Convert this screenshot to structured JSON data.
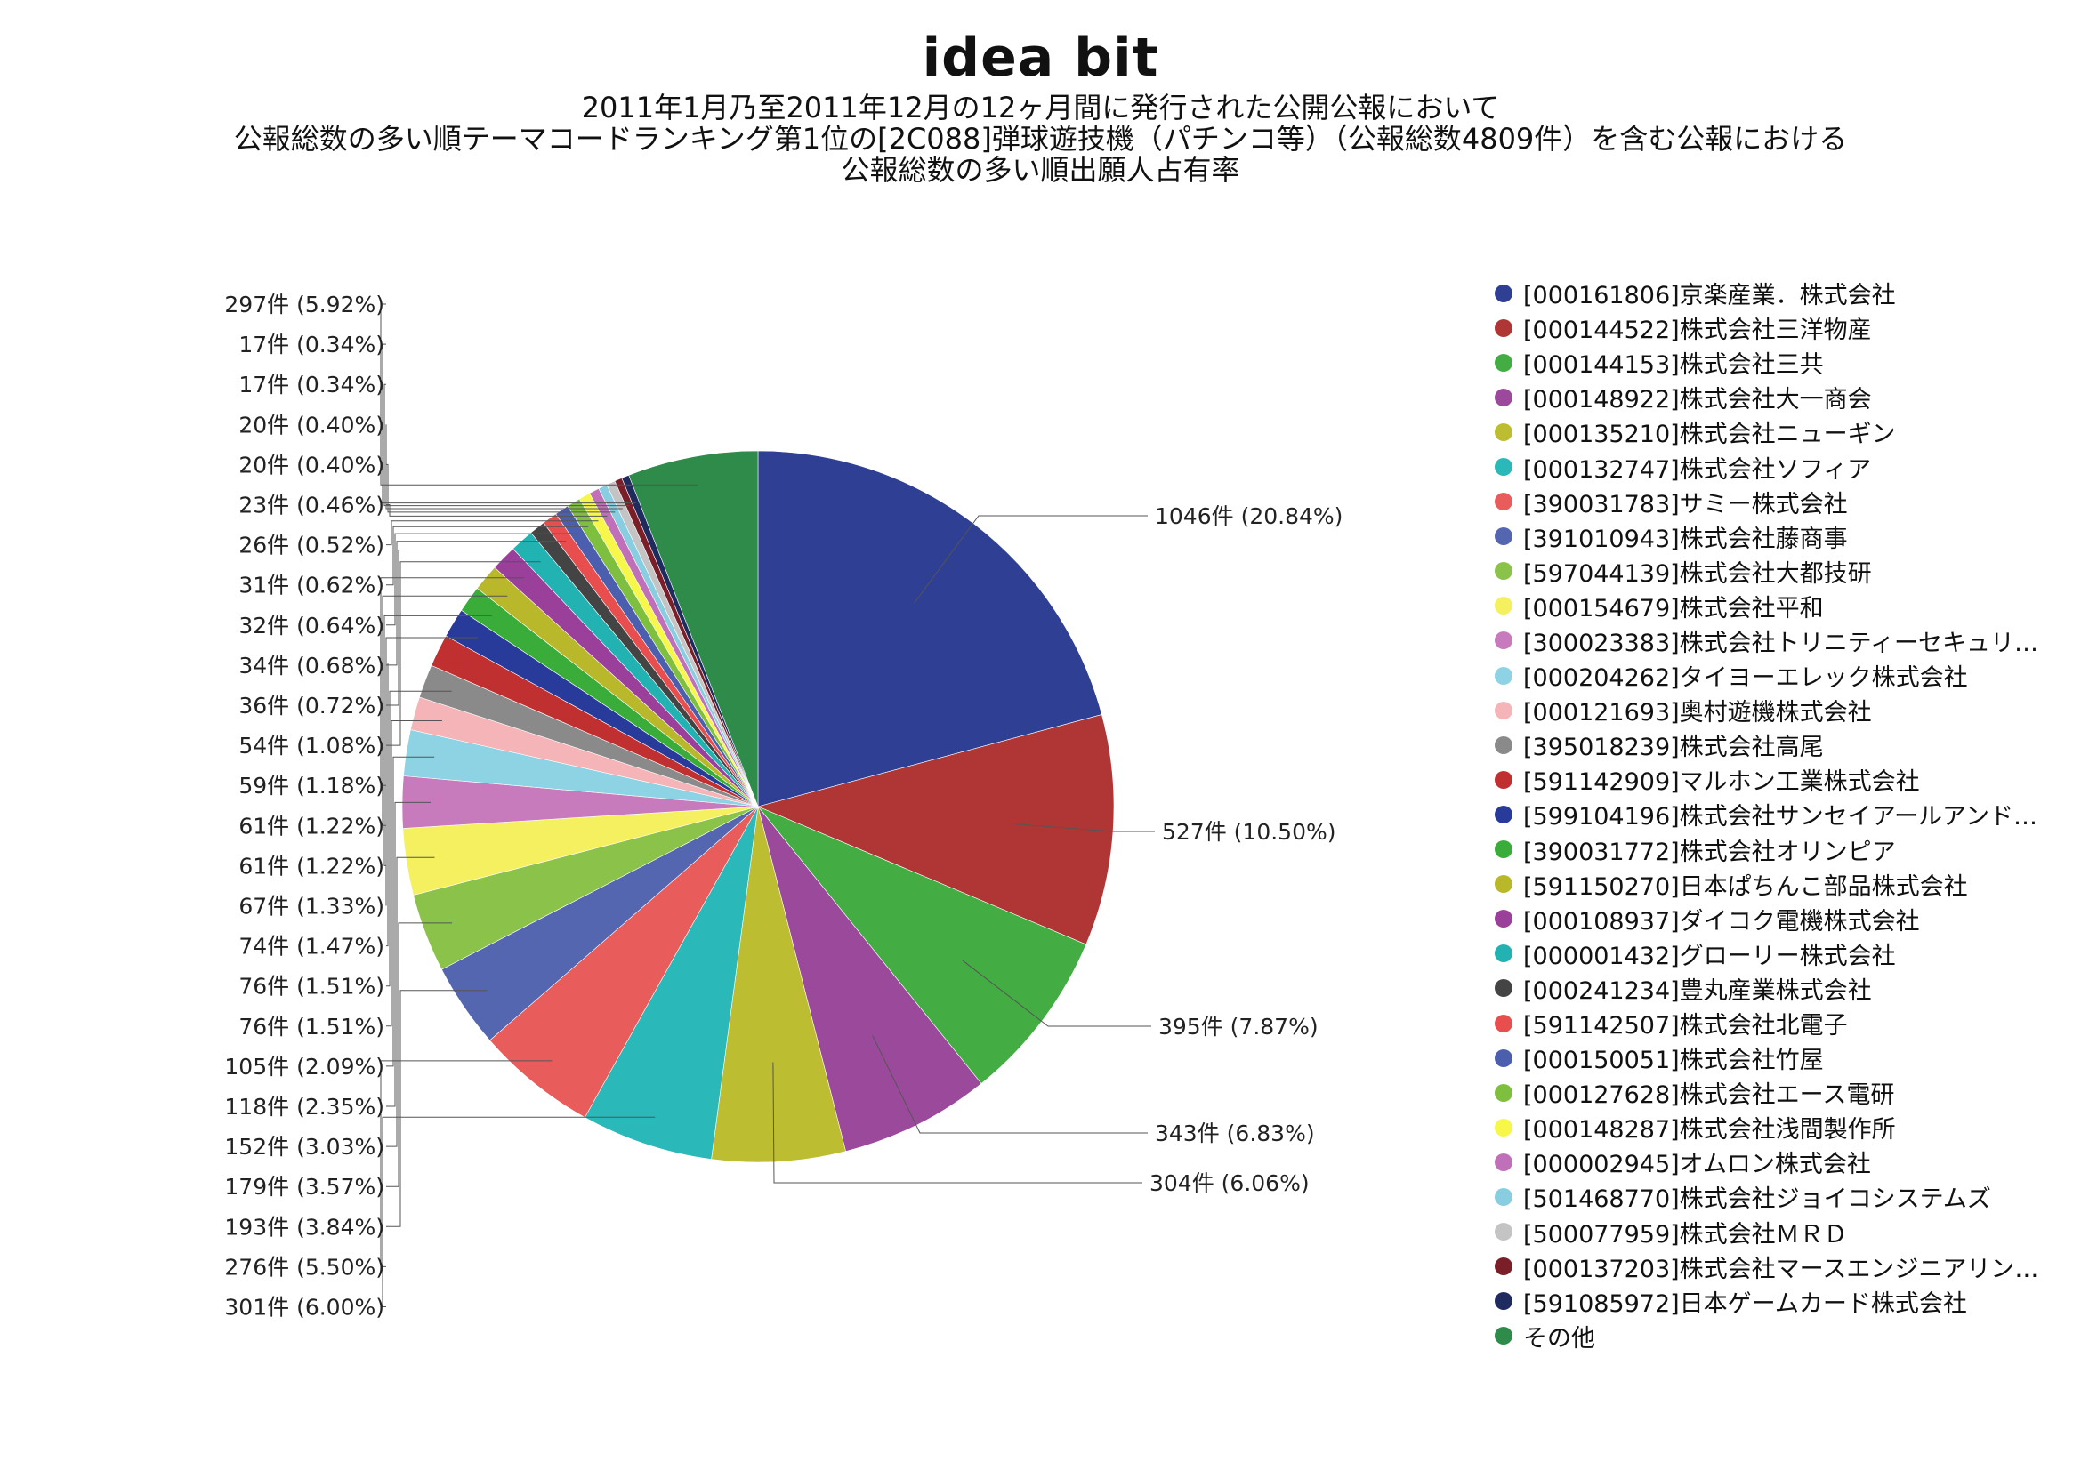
{
  "header": {
    "logo": "idea bit",
    "title_lines": [
      "2011年1月乃至2011年12月の12ヶ月間に発行された公開公報において",
      "公報総数の多い順テーマコードランキング第1位の[2C088]弾球遊技機（パチンコ等）（公報総数4809件）を含む公報における",
      "公報総数の多い順出願人占有率"
    ]
  },
  "chart_data": {
    "type": "pie",
    "title": "公報総数の多い順出願人占有率",
    "legend_position": "right",
    "start_angle": "12 o'clock",
    "direction": "clockwise",
    "slices": [
      {
        "name": "[000161806]京楽産業．株式会社",
        "value": 1046,
        "label": "1046件 (20.84%)",
        "color": "#2e3f94"
      },
      {
        "name": "[000144522]株式会社三洋物産",
        "value": 527,
        "label": "527件 (10.50%)",
        "color": "#b03636"
      },
      {
        "name": "[000144153]株式会社三共",
        "value": 395,
        "label": "395件 (7.87%)",
        "color": "#43ad43"
      },
      {
        "name": "[000148922]株式会社大一商会",
        "value": 343,
        "label": "343件 (6.83%)",
        "color": "#9b4a9b"
      },
      {
        "name": "[000135210]株式会社ニューギン",
        "value": 304,
        "label": "304件 (6.06%)",
        "color": "#bdbd32"
      },
      {
        "name": "[000132747]株式会社ソフィア",
        "value": 301,
        "label": "301件 (6.00%)",
        "color": "#2bb8b8"
      },
      {
        "name": "[390031783]サミー株式会社",
        "value": 276,
        "label": "276件 (5.50%)",
        "color": "#e85c5c"
      },
      {
        "name": "[391010943]株式会社藤商事",
        "value": 193,
        "label": "193件 (3.84%)",
        "color": "#5566b0"
      },
      {
        "name": "[597044139]株式会社大都技研",
        "value": 179,
        "label": "179件 (3.57%)",
        "color": "#8bc34a"
      },
      {
        "name": "[000154679]株式会社平和",
        "value": 152,
        "label": "152件 (3.03%)",
        "color": "#f5f060"
      },
      {
        "name": "[300023383]株式会社トリニティーセキュリ…",
        "value": 118,
        "label": "118件 (2.35%)",
        "color": "#c77bbd"
      },
      {
        "name": "[000204262]タイヨーエレック株式会社",
        "value": 105,
        "label": "105件 (2.09%)",
        "color": "#8dd3e3"
      },
      {
        "name": "[000121693]奥村遊機株式会社",
        "value": 76,
        "label": "76件 (1.51%)",
        "color": "#f5b5b8"
      },
      {
        "name": "[395018239]株式会社高尾",
        "value": 76,
        "label": "76件 (1.51%)",
        "color": "#8a8a8a"
      },
      {
        "name": "[591142909]マルホン工業株式会社",
        "value": 74,
        "label": "74件 (1.47%)",
        "color": "#c03030"
      },
      {
        "name": "[599104196]株式会社サンセイアールアンド…",
        "value": 67,
        "label": "67件 (1.33%)",
        "color": "#283b9a"
      },
      {
        "name": "[390031772]株式会社オリンピア",
        "value": 61,
        "label": "61件 (1.22%)",
        "color": "#3aac3a"
      },
      {
        "name": "[591150270]日本ぱちんこ部品株式会社",
        "value": 61,
        "label": "61件 (1.22%)",
        "color": "#b8b82a"
      },
      {
        "name": "[000108937]ダイコク電機株式会社",
        "value": 59,
        "label": "59件 (1.18%)",
        "color": "#9a3f9a"
      },
      {
        "name": "[000001432]グローリー株式会社",
        "value": 54,
        "label": "54件 (1.08%)",
        "color": "#22b2b2"
      },
      {
        "name": "[000241234]豊丸産業株式会社",
        "value": 36,
        "label": "36件 (0.72%)",
        "color": "#444444"
      },
      {
        "name": "[591142507]株式会社北電子",
        "value": 34,
        "label": "34件 (0.68%)",
        "color": "#e84e4e"
      },
      {
        "name": "[000150051]株式会社竹屋",
        "value": 32,
        "label": "32件 (0.64%)",
        "color": "#4c5fae"
      },
      {
        "name": "[000127628]株式会社エース電研",
        "value": 31,
        "label": "31件 (0.62%)",
        "color": "#7fbf3f"
      },
      {
        "name": "[000148287]株式会社浅間製作所",
        "value": 26,
        "label": "26件 (0.52%)",
        "color": "#f7f74a"
      },
      {
        "name": "[000002945]オムロン株式会社",
        "value": 23,
        "label": "23件 (0.46%)",
        "color": "#c070b8"
      },
      {
        "name": "[501468770]株式会社ジョイコシステムズ",
        "value": 20,
        "label": "20件 (0.40%)",
        "color": "#88cde0"
      },
      {
        "name": "[500077959]株式会社ＭＲＤ",
        "value": 20,
        "label": "20件 (0.40%)",
        "color": "#c4c4c4"
      },
      {
        "name": "[000137203]株式会社マースエンジニアリン…",
        "value": 17,
        "label": "17件 (0.34%)",
        "color": "#7a1f28"
      },
      {
        "name": "[591085972]日本ゲームカード株式会社",
        "value": 17,
        "label": "17件 (0.34%)",
        "color": "#1f2a5e"
      },
      {
        "name": "その他",
        "value": 297,
        "label": "297件 (5.92%)",
        "color": "#2e8b4a"
      }
    ]
  }
}
